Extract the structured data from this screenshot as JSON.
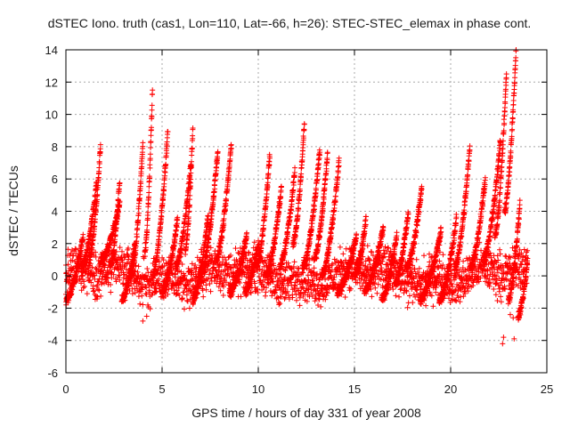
{
  "chart_data": {
    "type": "scatter",
    "title": "dSTEC Iono. truth (cas1, Lon=110, Lat=-66, h=26): STEC-STEC_elemax in phase cont.",
    "xlabel": "GPS time / hours of day 331 of year 2008",
    "ylabel": "dSTEC  / TECUs",
    "xlim": [
      0,
      25
    ],
    "ylim": [
      -6,
      14
    ],
    "xticks": [
      0,
      5,
      10,
      15,
      20,
      25
    ],
    "yticks": [
      -6,
      -4,
      -2,
      0,
      2,
      4,
      6,
      8,
      10,
      12,
      14
    ],
    "xtick_labels": [
      "0",
      "5",
      "10",
      "15",
      "20",
      "25"
    ],
    "ytick_labels": [
      "-6",
      "-4",
      "-2",
      "0",
      "2",
      "4",
      "6",
      "8",
      "10",
      "12",
      "14"
    ],
    "grid": true,
    "marker": "+",
    "color": "#ff0000",
    "series": [
      {
        "name": "dSTEC",
        "arcs": [
          {
            "t0": 0.0,
            "t1": 0.9,
            "from": -1.5,
            "to": 2.5
          },
          {
            "t0": 0.8,
            "t1": 1.6,
            "from": 0.5,
            "to": 5.8
          },
          {
            "t0": 1.2,
            "t1": 1.8,
            "from": 1.0,
            "to": 8.0
          },
          {
            "t0": 1.8,
            "t1": 2.8,
            "from": 1.0,
            "to": 4.5
          },
          {
            "t0": 2.3,
            "t1": 2.8,
            "from": 0.5,
            "to": 6.0
          },
          {
            "t0": 2.9,
            "t1": 3.6,
            "from": -1.5,
            "to": 2.0
          },
          {
            "t0": 3.4,
            "t1": 4.0,
            "from": 0.0,
            "to": 8.2
          },
          {
            "t0": 4.1,
            "t1": 4.5,
            "from": 1.5,
            "to": 11.5
          },
          {
            "t0": 4.5,
            "t1": 5.3,
            "from": 0.0,
            "to": 9.0
          },
          {
            "t0": 5.0,
            "t1": 5.8,
            "from": -1.0,
            "to": 3.5
          },
          {
            "t0": 5.7,
            "t1": 6.5,
            "from": 0.5,
            "to": 7.0
          },
          {
            "t0": 6.2,
            "t1": 6.6,
            "from": 1.5,
            "to": 9.2
          },
          {
            "t0": 6.6,
            "t1": 7.4,
            "from": -1.5,
            "to": 3.8
          },
          {
            "t0": 7.0,
            "t1": 7.9,
            "from": 0.0,
            "to": 7.8
          },
          {
            "t0": 7.8,
            "t1": 8.6,
            "from": 1.0,
            "to": 8.2
          },
          {
            "t0": 8.5,
            "t1": 9.4,
            "from": -1.0,
            "to": 2.5
          },
          {
            "t0": 9.3,
            "t1": 10.0,
            "from": -1.0,
            "to": 2.0
          },
          {
            "t0": 9.9,
            "t1": 10.6,
            "from": 0.5,
            "to": 7.5
          },
          {
            "t0": 10.4,
            "t1": 11.2,
            "from": 0.0,
            "to": 5.5
          },
          {
            "t0": 11.1,
            "t1": 11.9,
            "from": 0.5,
            "to": 6.5
          },
          {
            "t0": 11.8,
            "t1": 12.4,
            "from": 2.0,
            "to": 9.5
          },
          {
            "t0": 12.3,
            "t1": 13.2,
            "from": 0.5,
            "to": 7.8
          },
          {
            "t0": 12.9,
            "t1": 13.6,
            "from": 1.0,
            "to": 7.5
          },
          {
            "t0": 13.3,
            "t1": 14.2,
            "from": 0.0,
            "to": 7.2
          },
          {
            "t0": 14.1,
            "t1": 15.1,
            "from": -1.0,
            "to": 2.5
          },
          {
            "t0": 15.0,
            "t1": 15.6,
            "from": 0.0,
            "to": 3.5
          },
          {
            "t0": 15.5,
            "t1": 16.5,
            "from": -1.0,
            "to": 3.0
          },
          {
            "t0": 16.4,
            "t1": 17.2,
            "from": -1.5,
            "to": 2.5
          },
          {
            "t0": 17.1,
            "t1": 17.8,
            "from": -0.5,
            "to": 4.0
          },
          {
            "t0": 17.7,
            "t1": 18.5,
            "from": 0.5,
            "to": 5.5
          },
          {
            "t0": 18.4,
            "t1": 19.5,
            "from": -1.5,
            "to": 2.8
          },
          {
            "t0": 19.4,
            "t1": 20.3,
            "from": -1.5,
            "to": 3.5
          },
          {
            "t0": 20.2,
            "t1": 21.0,
            "from": 0.5,
            "to": 8.0
          },
          {
            "t0": 21.0,
            "t1": 21.8,
            "from": 0.5,
            "to": 6.0
          },
          {
            "t0": 21.7,
            "t1": 22.6,
            "from": 1.0,
            "to": 8.5
          },
          {
            "t0": 22.3,
            "t1": 22.9,
            "from": 2.5,
            "to": 12.5
          },
          {
            "t0": 22.8,
            "t1": 23.4,
            "from": 4.0,
            "to": 14.0
          },
          {
            "t0": 23.0,
            "t1": 23.6,
            "from": -1.5,
            "to": 4.5
          },
          {
            "t0": 23.5,
            "t1": 24.0,
            "from": -2.5,
            "to": 1.0
          }
        ]
      }
    ],
    "notes": "Dense cloud of red '+' markers: baseline scatter between about -2.5 and 2.5 TECU over 0-24 h, with arc-shaped excursions peaking near 11.5 (t~4.4), 9.2 (t~6.4), 9.5 (t~12), 14 (t~23.2); lowest points near -4.2 (t~22.7)."
  }
}
